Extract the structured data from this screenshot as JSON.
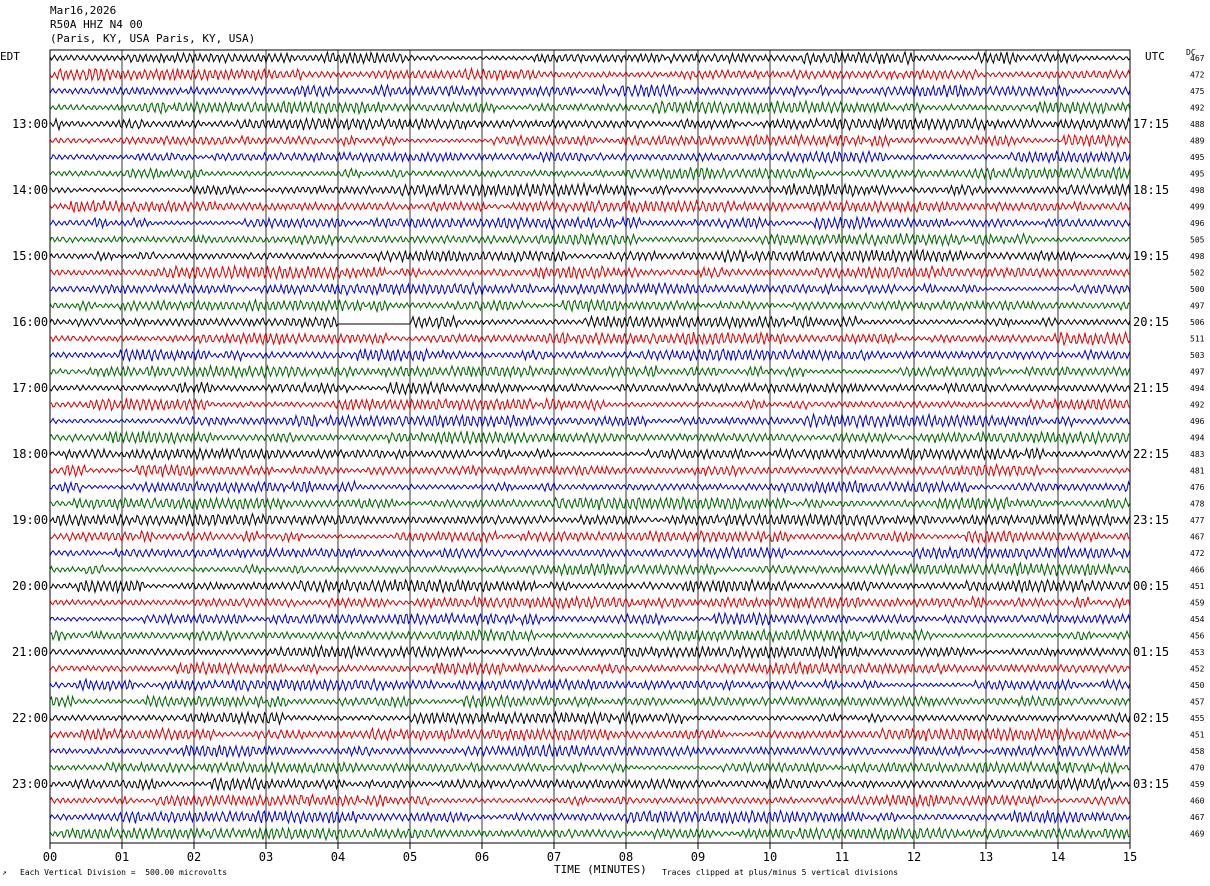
{
  "header": {
    "date": "Mar16,2026",
    "station": "R50A HHZ N4 00",
    "location": "(Paris, KY, USA Paris, KY, USA)"
  },
  "labels": {
    "left_tz": "EDT",
    "right_tz": "UTC",
    "dc": "DC"
  },
  "footer": {
    "division": "Each Vertical Division =  500.00 microvolts",
    "xaxis_title": "TIME (MINUTES)",
    "clip_note": "Traces clipped at plus/minus 5 vertical divisions"
  },
  "chart_data": {
    "type": "line",
    "xlabel": "TIME (MINUTES)",
    "x_ticks": [
      "00",
      "01",
      "02",
      "03",
      "04",
      "05",
      "06",
      "07",
      "08",
      "09",
      "10",
      "11",
      "12",
      "13",
      "14",
      "15"
    ],
    "xlim": [
      0,
      15
    ],
    "trace_colors": [
      "#000000",
      "#dd0000",
      "#0000cc",
      "#006400"
    ],
    "left_time_labels": [
      "13:00",
      "14:00",
      "15:00",
      "16:00",
      "17:00",
      "18:00",
      "19:00",
      "20:00",
      "21:00",
      "22:00",
      "23:00"
    ],
    "right_time_labels": [
      "17:15",
      "18:15",
      "19:15",
      "20:15",
      "21:15",
      "22:15",
      "23:15",
      "00:15",
      "01:15",
      "02:15",
      "03:15"
    ],
    "dc_offsets": [
      467,
      472,
      475,
      492,
      488,
      489,
      495,
      495,
      498,
      499,
      496,
      505,
      498,
      502,
      500,
      497,
      506,
      511,
      503,
      497,
      494,
      492,
      496,
      494,
      483,
      481,
      476,
      478,
      477,
      467,
      472,
      466,
      451,
      459,
      454,
      456,
      453,
      452,
      450,
      457,
      455,
      451,
      458,
      470,
      459,
      460,
      467,
      469
    ],
    "gap": {
      "row": 16,
      "start_minute": 4.0,
      "end_minute": 5.0
    }
  }
}
